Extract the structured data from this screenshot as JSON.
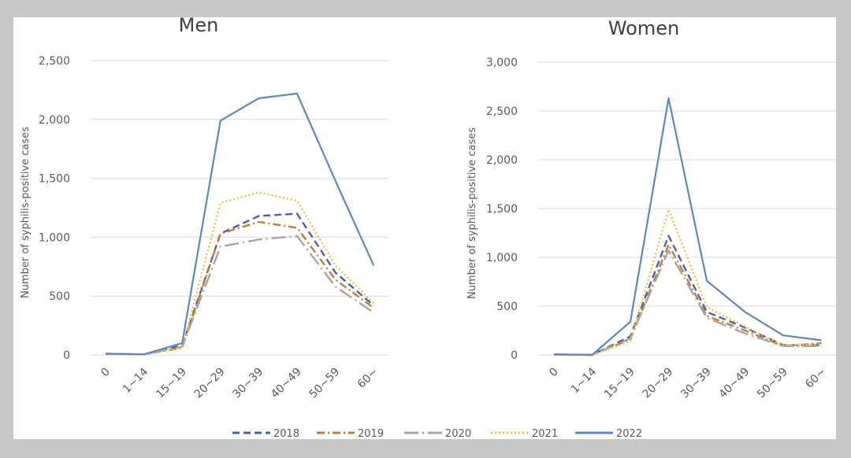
{
  "colors": {
    "background": "#c8c8c8",
    "plot_area": "#ffffff",
    "gridline": "#d9d9d9",
    "text": "#595959"
  },
  "legend": [
    {
      "name": "2018",
      "color": "#4a5fb0",
      "dash": "9,5"
    },
    {
      "name": "2019",
      "color": "#c47b2e",
      "dash": "10,4,2,4"
    },
    {
      "name": "2020",
      "color": "#a5a5a5",
      "dash": "18,5,2,5"
    },
    {
      "name": "2021",
      "color": "#f2c12e",
      "dash": "2,3"
    },
    {
      "name": "2022",
      "color": "#5b87c5",
      "dash": ""
    }
  ],
  "chart_data": [
    {
      "type": "line",
      "title": "Men",
      "ylabel": "Number of syphilis-positive cases",
      "xlabel": "",
      "categories": [
        "0",
        "1~14",
        "15~19",
        "20~29",
        "30~39",
        "40~49",
        "50~59",
        "60~"
      ],
      "yticks": [
        "0",
        "500",
        "1,000",
        "1,500",
        "2,000",
        "2,500"
      ],
      "ylim": [
        0,
        2500
      ],
      "grid": true,
      "series": [
        {
          "name": "2018",
          "values": [
            10,
            5,
            80,
            1030,
            1180,
            1200,
            700,
            420
          ]
        },
        {
          "name": "2019",
          "values": [
            10,
            5,
            60,
            1030,
            1130,
            1080,
            640,
            400
          ]
        },
        {
          "name": "2020",
          "values": [
            10,
            5,
            70,
            920,
            980,
            1010,
            580,
            360
          ]
        },
        {
          "name": "2021",
          "values": [
            10,
            5,
            60,
            1290,
            1380,
            1310,
            760,
            440
          ]
        },
        {
          "name": "2022",
          "values": [
            10,
            5,
            100,
            1990,
            2180,
            2220,
            1480,
            760
          ]
        }
      ]
    },
    {
      "type": "line",
      "title": "Women",
      "ylabel": "Number of syphilis-positive cases",
      "xlabel": "",
      "categories": [
        "0",
        "1~14",
        "15~19",
        "20~29",
        "30~39",
        "40~49",
        "50~59",
        "60~"
      ],
      "yticks": [
        "0",
        "500",
        "1,000",
        "1,500",
        "2,000",
        "2,500",
        "3,000"
      ],
      "ylim": [
        0,
        3000
      ],
      "grid": true,
      "series": [
        {
          "name": "2018",
          "values": [
            5,
            0,
            190,
            1220,
            440,
            280,
            100,
            100
          ]
        },
        {
          "name": "2019",
          "values": [
            5,
            0,
            160,
            1130,
            400,
            250,
            90,
            120
          ]
        },
        {
          "name": "2020",
          "values": [
            5,
            0,
            170,
            1070,
            380,
            220,
            90,
            90
          ]
        },
        {
          "name": "2021",
          "values": [
            5,
            0,
            140,
            1490,
            490,
            290,
            100,
            110
          ]
        },
        {
          "name": "2022",
          "values": [
            5,
            0,
            340,
            2630,
            760,
            440,
            200,
            150
          ]
        }
      ]
    }
  ]
}
